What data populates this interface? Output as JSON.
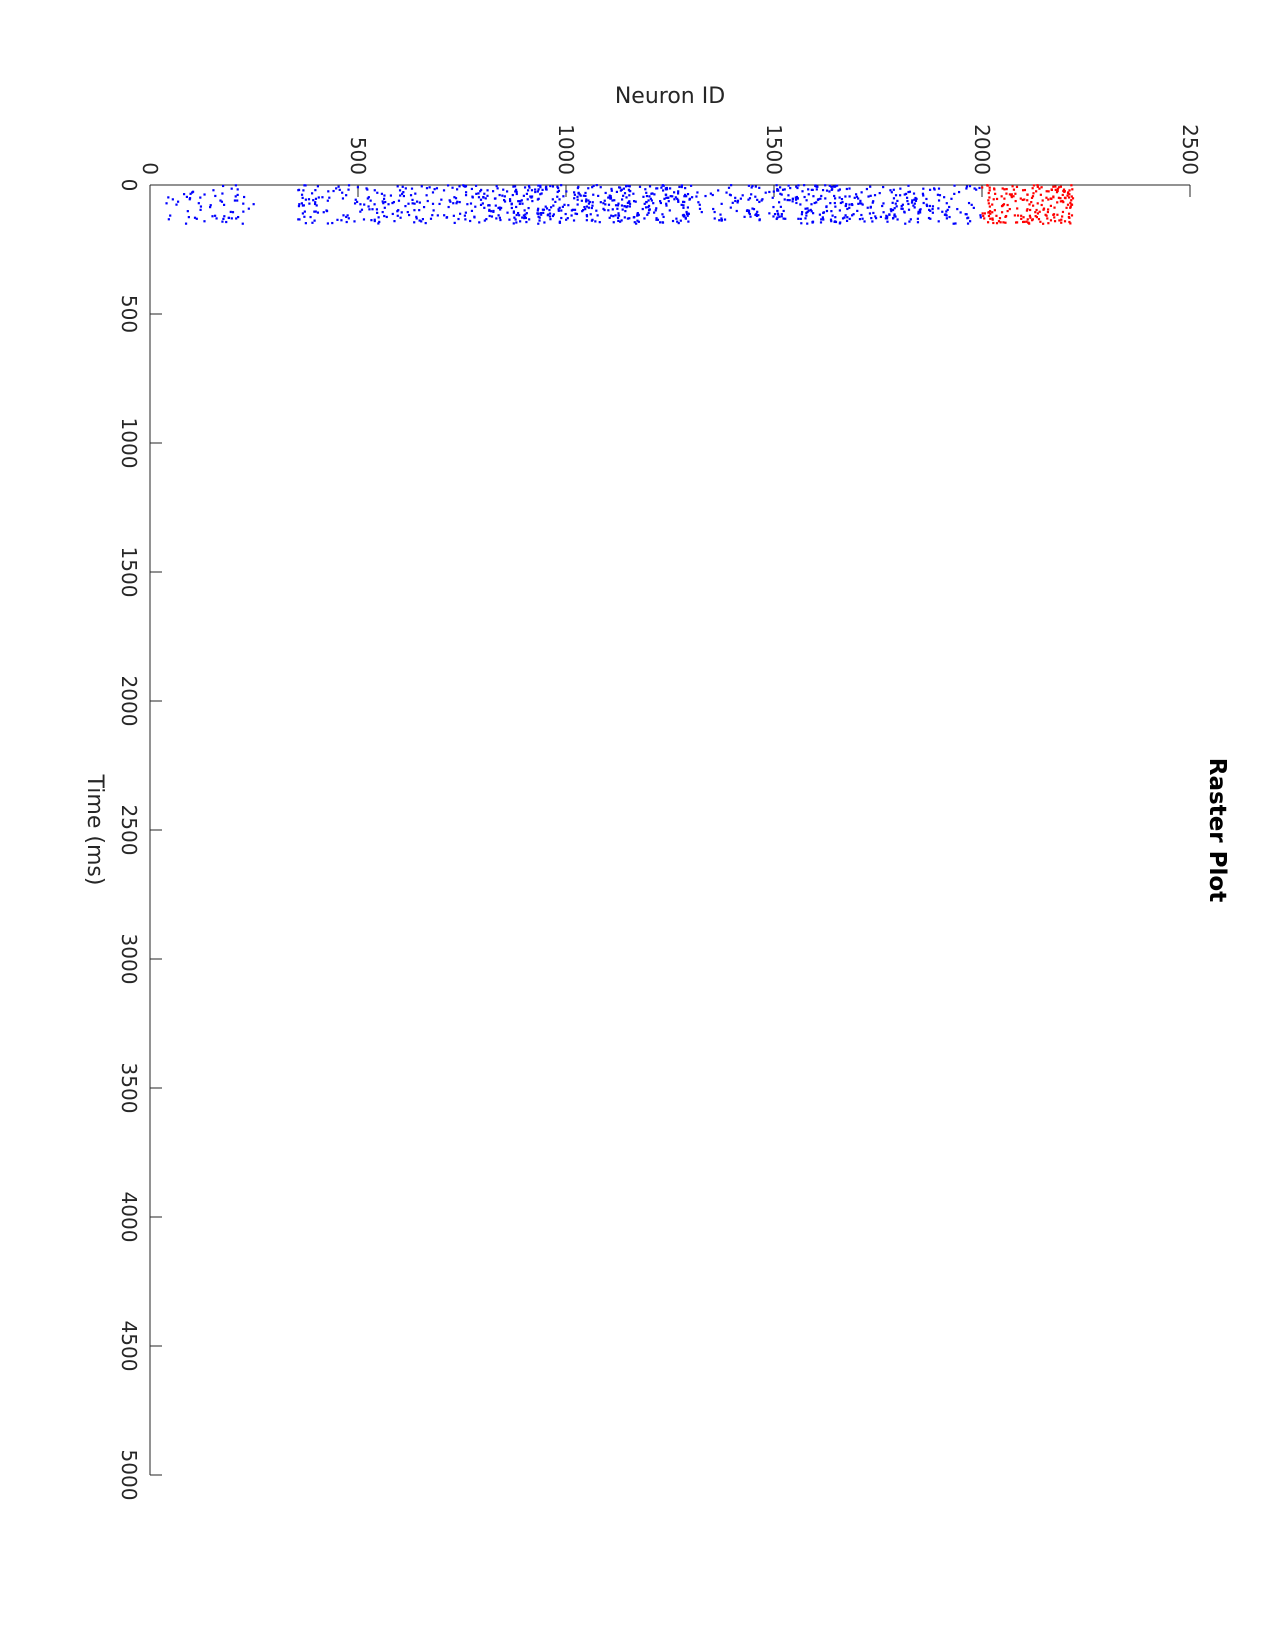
{
  "chart_data": {
    "type": "scatter",
    "title": "Raster Plot",
    "xlabel": "Time (ms)",
    "ylabel": "Neuron ID",
    "xlim": [
      0,
      5000
    ],
    "ylim": [
      0,
      2500
    ],
    "xticks": [
      "0",
      "500",
      "1000",
      "1500",
      "2000",
      "2500",
      "3000",
      "3500",
      "4000",
      "4500",
      "5000"
    ],
    "yticks": [
      "0",
      "500",
      "1000",
      "1500",
      "2000",
      "2500"
    ],
    "grid": false,
    "orientation": "page rotated 90 degrees",
    "series": [
      {
        "color": "#0000ff",
        "marker": "dot",
        "x_range": [
          0,
          150
        ],
        "neuron_bands": [
          [
            30,
            120
          ],
          [
            120,
            250
          ],
          [
            350,
            420
          ],
          [
            420,
            600
          ],
          [
            600,
            700
          ],
          [
            700,
            800
          ],
          [
            800,
            950
          ],
          [
            950,
            1120
          ],
          [
            1120,
            1300
          ],
          [
            1300,
            1500
          ],
          [
            1500,
            1560
          ],
          [
            1560,
            1680
          ],
          [
            1680,
            1780
          ],
          [
            1780,
            1860
          ],
          [
            1860,
            2000
          ]
        ],
        "band_density": [
          0.25,
          0.35,
          0.6,
          0.45,
          0.5,
          0.55,
          0.9,
          0.8,
          1.0,
          0.4,
          0.8,
          0.9,
          0.6,
          0.85,
          0.45
        ]
      },
      {
        "color": "#ff0000",
        "marker": "dot",
        "x_range": [
          0,
          150
        ],
        "neuron_bands": [
          [
            2000,
            2220
          ]
        ],
        "band_density": [
          1.0
        ]
      }
    ]
  }
}
